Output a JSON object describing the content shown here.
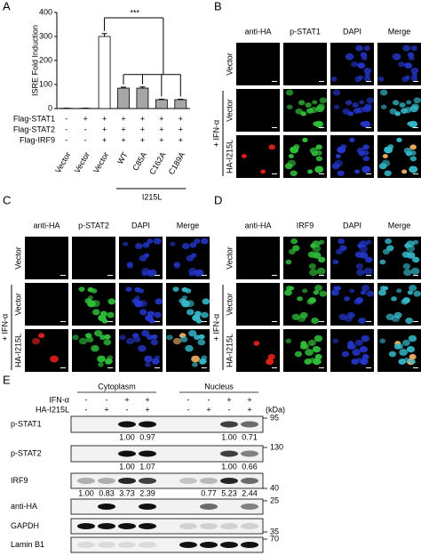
{
  "chart_data": {
    "type": "bar",
    "panel": "A",
    "y_label": "ISRE Fold Induction",
    "categories": [
      "Vector",
      "Vector",
      "Vector",
      "WT",
      "C85A",
      "C162A",
      "C189A"
    ],
    "values": [
      1,
      1,
      300,
      85,
      85,
      37,
      37
    ],
    "errors": [
      0.5,
      0.5,
      12,
      4,
      5,
      2,
      2
    ],
    "colors": [
      "#ffffff",
      "#ffffff",
      "#ffffff",
      "#a6a6a6",
      "#a6a6a6",
      "#a6a6a6",
      "#a6a6a6"
    ],
    "ylim": [
      0,
      400
    ],
    "yticks": [
      0,
      100,
      200,
      300,
      400
    ],
    "significance": "***",
    "group_label": "I215L",
    "conditions": [
      {
        "name": "Flag-STAT1",
        "signs": [
          "-",
          "+",
          "+",
          "+",
          "+",
          "+",
          "+"
        ]
      },
      {
        "name": "Flag-STAT2",
        "signs": [
          "-",
          "-",
          "+",
          "+",
          "+",
          "+",
          "+"
        ]
      },
      {
        "name": "Flag-IRF9",
        "signs": [
          "-",
          "-",
          "+",
          "+",
          "+",
          "+",
          "+"
        ]
      }
    ]
  },
  "imaging": [
    {
      "label": "B",
      "columns": [
        "anti-HA",
        "p-STAT1",
        "DAPI",
        "Merge"
      ],
      "rows": [
        "Vector",
        "Vector",
        "HA-I215L"
      ],
      "treatment": "+ IFN-α"
    },
    {
      "label": "C",
      "columns": [
        "anti-HA",
        "p-STAT2",
        "DAPI",
        "Merge"
      ],
      "rows": [
        "Vector",
        "Vector",
        "HA-I215L"
      ],
      "treatment": "+ IFN-α"
    },
    {
      "label": "D",
      "columns": [
        "anti-HA",
        "IRF9",
        "DAPI",
        "Merge"
      ],
      "rows": [
        "Vector",
        "Vector",
        "HA-I215L"
      ],
      "treatment": "+ IFN-α"
    }
  ],
  "blot": {
    "label": "E",
    "fractions": [
      "Cytoplasm",
      "Nucleus"
    ],
    "unit": "(kDa)",
    "conditions": [
      {
        "name": "IFN-α",
        "signs": [
          "-",
          "-",
          "+",
          "+",
          "-",
          "-",
          "+",
          "+"
        ]
      },
      {
        "name": "HA-I215L",
        "signs": [
          "-",
          "+",
          "-",
          "+",
          "-",
          "+",
          "-",
          "+"
        ]
      }
    ],
    "rows": [
      {
        "name": "p-STAT1",
        "marker": "95",
        "quant": [
          null,
          null,
          "1.00",
          "0.97",
          null,
          null,
          "1.00",
          "0.71"
        ]
      },
      {
        "name": "p-STAT2",
        "marker": "130",
        "quant": [
          null,
          null,
          "1.00",
          "1.07",
          null,
          null,
          "1.00",
          "0.66"
        ]
      },
      {
        "name": "IRF9",
        "marker": "40",
        "quant": [
          "1.00",
          "0.83",
          "3.73",
          "2.39",
          null,
          "0.77",
          "5.23",
          "2.44"
        ]
      },
      {
        "name": "anti-HA",
        "marker": "25",
        "quant": null
      },
      {
        "name": "GAPDH",
        "marker": "35",
        "quant": null
      },
      {
        "name": "Lamin B1",
        "marker": "70",
        "quant": null
      }
    ]
  }
}
